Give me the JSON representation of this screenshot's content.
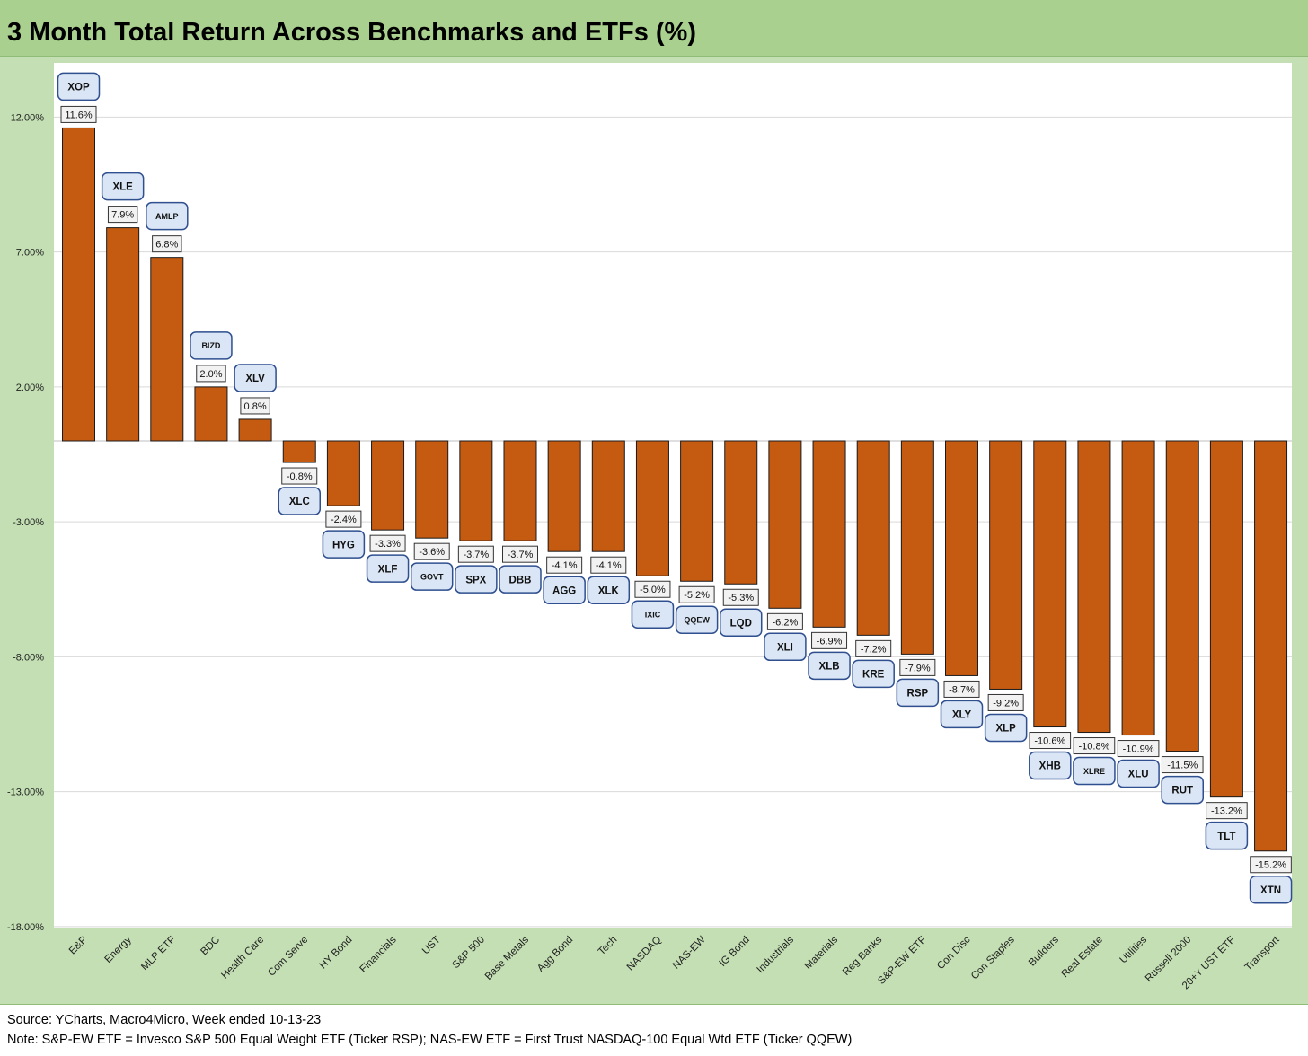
{
  "title": "3 Month Total Return Across Benchmarks and ETFs (%)",
  "source": "Source: YCharts, Macro4Micro, Week ended 10-13-23",
  "note": "Note: S&P-EW ETF = Invesco S&P 500 Equal Weight ETF (Ticker RSP); NAS-EW ETF = First Trust NASDAQ-100 Equal Wtd ETF (Ticker QQEW)",
  "colors": {
    "bar": "#c55a11",
    "label_box_fill": "#dae6f5",
    "label_box_border": "#2f4f8f"
  },
  "chart_data": {
    "type": "bar",
    "title": "3 Month Total Return Across Benchmarks and ETFs (%)",
    "ylim": [
      -18,
      13
    ],
    "yticks": [
      12,
      7,
      2,
      -3,
      -8,
      -13,
      -18
    ],
    "ytick_labels": [
      "12.00%",
      "7.00%",
      "2.00%",
      "-3.00%",
      "-8.00%",
      "-13.00%",
      "-18.00%"
    ],
    "grid": true,
    "categories": [
      "E&P",
      "Energy",
      "MLP ETF",
      "BDC",
      "Health Care",
      "Com Serve",
      "HY Bond",
      "Financials",
      "UST",
      "S&P 500",
      "Base Metals",
      "Agg Bond",
      "Tech",
      "NASDAQ",
      "NAS-EW",
      "IG Bond",
      "Industrials",
      "Materials",
      "Reg Banks",
      "S&P-EW ETF",
      "Con Disc",
      "Con Staples",
      "Builders",
      "Real Estate",
      "Utilities",
      "Russell 2000",
      "20+Y UST ETF",
      "Transport"
    ],
    "values": [
      11.6,
      7.9,
      6.8,
      2.0,
      0.8,
      -0.8,
      -2.4,
      -3.3,
      -3.6,
      -3.7,
      -3.7,
      -4.1,
      -4.1,
      -5.0,
      -5.2,
      -5.3,
      -6.2,
      -6.9,
      -7.2,
      -7.9,
      -8.7,
      -9.2,
      -10.6,
      -10.8,
      -10.9,
      -11.5,
      -13.2,
      -15.2
    ],
    "data_labels": [
      "11.6%",
      "7.9%",
      "6.8%",
      "2.0%",
      "0.8%",
      "-0.8%",
      "-2.4%",
      "-3.3%",
      "-3.6%",
      "-3.7%",
      "-3.7%",
      "-4.1%",
      "-4.1%",
      "-5.0%",
      "-5.2%",
      "-5.3%",
      "-6.2%",
      "-6.9%",
      "-7.2%",
      "-7.9%",
      "-8.7%",
      "-9.2%",
      "-10.6%",
      "-10.8%",
      "-10.9%",
      "-11.5%",
      "-13.2%",
      "-15.2%"
    ],
    "tickers": [
      "XOP",
      "XLE",
      "AMLP",
      "BIZD",
      "XLV",
      "XLC",
      "HYG",
      "XLF",
      "GOVT",
      "SPX",
      "DBB",
      "AGG",
      "XLK",
      "IXIC",
      "QQEW",
      "LQD",
      "XLI",
      "XLB",
      "KRE",
      "RSP",
      "XLY",
      "XLP",
      "XHB",
      "XLRE",
      "XLU",
      "RUT",
      "TLT",
      "XTN"
    ]
  }
}
